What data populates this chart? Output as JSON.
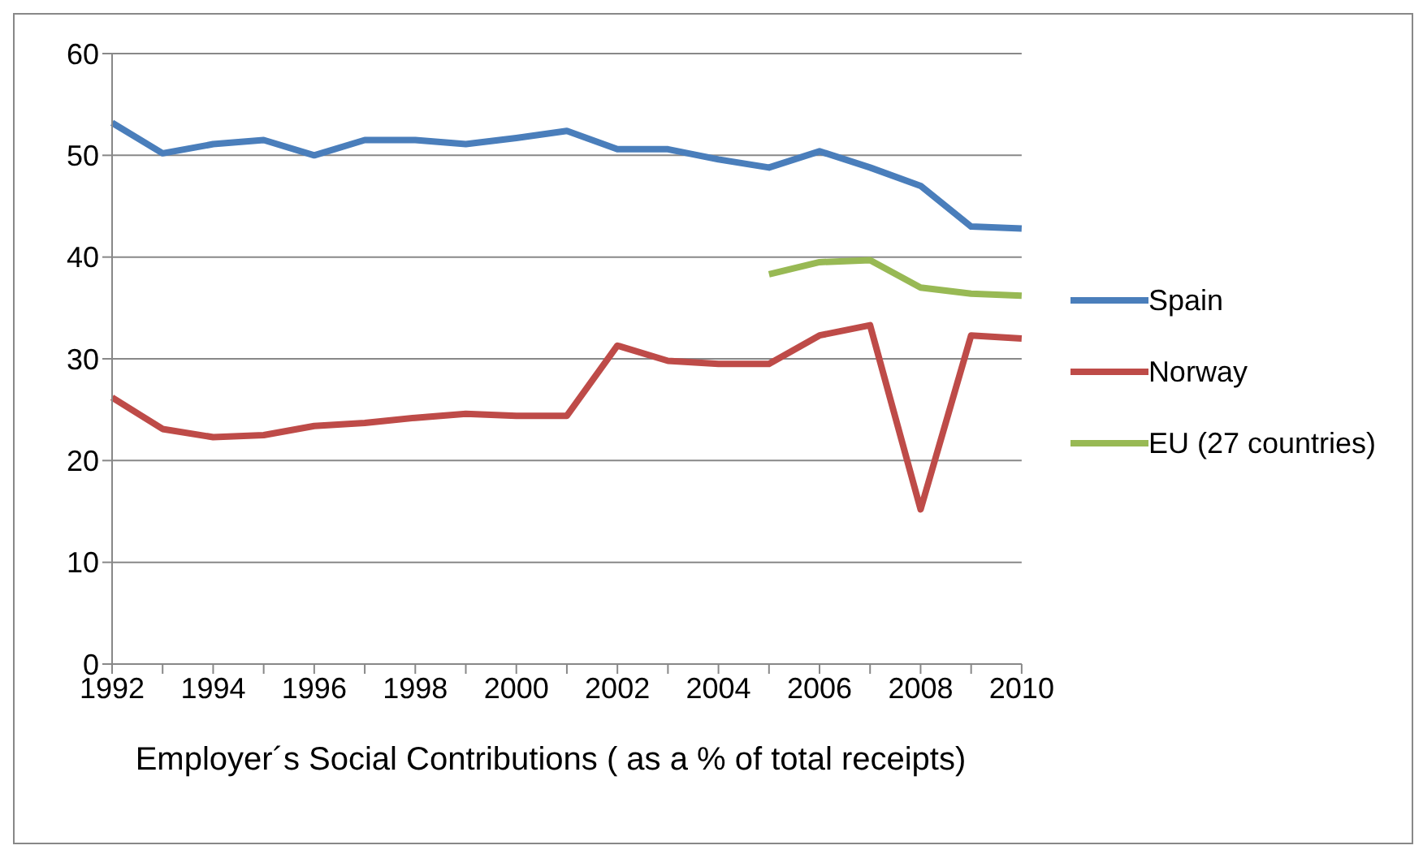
{
  "chart_data": {
    "type": "line",
    "xlabel": "Employer´s Social Contributions ( as a % of total receipts)",
    "categories": [
      "1992",
      null,
      "1994",
      null,
      "1996",
      null,
      "1998",
      null,
      "2000",
      null,
      "2002",
      null,
      "2004",
      null,
      "2006",
      null,
      "2008",
      null,
      "2010"
    ],
    "series": [
      {
        "name": "Spain",
        "color": "#4a7ebb",
        "values": [
          53.2,
          50.2,
          51.1,
          51.5,
          50.0,
          51.5,
          51.5,
          51.1,
          51.7,
          52.4,
          50.6,
          50.6,
          49.6,
          48.8,
          50.4,
          48.8,
          47.0,
          43.0,
          42.8
        ]
      },
      {
        "name": "Norway",
        "color": "#be4b48",
        "values": [
          26.2,
          23.1,
          22.3,
          22.5,
          23.4,
          23.7,
          24.2,
          24.6,
          24.4,
          24.4,
          31.3,
          29.8,
          29.5,
          29.5,
          32.3,
          33.3,
          15.2,
          32.3,
          32.0
        ]
      },
      {
        "name": "EU (27 countries)",
        "color": "#98b954",
        "values": [
          null,
          null,
          null,
          null,
          null,
          null,
          null,
          null,
          null,
          null,
          null,
          null,
          null,
          38.3,
          39.5,
          39.7,
          37.0,
          36.4,
          36.2
        ]
      }
    ],
    "ylim": [
      0,
      60
    ],
    "yticks": [
      0,
      10,
      20,
      30,
      40,
      50,
      60
    ],
    "grid": "y",
    "legend": "right",
    "marker": "none",
    "line_style": "solid"
  }
}
